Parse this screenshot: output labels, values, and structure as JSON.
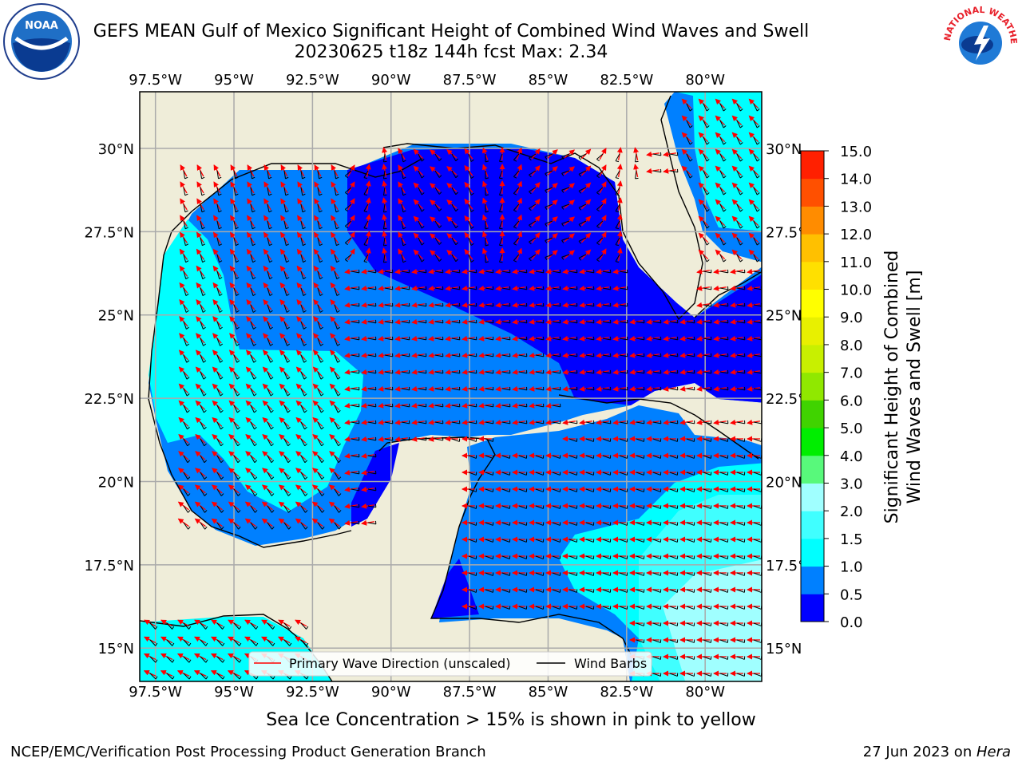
{
  "title": {
    "line1": "GEFS MEAN Gulf of Mexico Significant Height of Combined Wind Waves and Swell",
    "line2": "20230625 t18z 144h fcst   Max: 2.34"
  },
  "logos": {
    "left": "NOAA",
    "right": "NATIONAL WEATHER SERVICE"
  },
  "map": {
    "lon_labels": [
      "97.5°W",
      "95°W",
      "92.5°W",
      "90°W",
      "87.5°W",
      "85°W",
      "82.5°W",
      "80°W"
    ],
    "lat_labels": [
      "30°N",
      "27.5°N",
      "25°N",
      "22.5°N",
      "20°N",
      "17.5°N",
      "15°N"
    ],
    "lon_values": [
      -97.5,
      -95,
      -92.5,
      -90,
      -87.5,
      -85,
      -82.5,
      -80
    ],
    "lat_values": [
      30,
      27.5,
      25,
      22.5,
      20,
      17.5,
      15
    ],
    "lon_range": [
      -98,
      -78.2
    ],
    "lat_range": [
      14,
      31.7
    ],
    "grid": true,
    "colors": {
      "land": "#efedd9",
      "coast": "#000000",
      "arrow": "#ff0000",
      "barb": "#000000"
    }
  },
  "legend": {
    "wave_label": "Primary Wave Direction (unscaled)",
    "barb_label": "Wind Barbs",
    "placement": "lower-center"
  },
  "colorbar": {
    "label_line1": "Significant Height of Combined",
    "label_line2": "Wind Waves and Swell [m]",
    "ticks": [
      "0.0",
      "0.5",
      "1.0",
      "1.5",
      "2.0",
      "3.0",
      "4.0",
      "5.0",
      "6.0",
      "7.0",
      "8.0",
      "9.0",
      "10.0",
      "11.0",
      "12.0",
      "13.0",
      "14.0",
      "15.0"
    ],
    "colors": [
      "#0000ff",
      "#0080ff",
      "#00ffff",
      "#40ffff",
      "#a0ffff",
      "#58f97b",
      "#00ee00",
      "#40d300",
      "#90e800",
      "#c8f000",
      "#e8f000",
      "#ffff00",
      "#ffe000",
      "#ffc000",
      "#ff8c00",
      "#ff5000",
      "#ff2000"
    ]
  },
  "subnote": "Sea Ice Concentration > 15% is shown in pink to yellow",
  "footer": {
    "left": "NCEP/EMC/Verification Post Processing Product Generation Branch",
    "right_prefix": "27 Jun 2023 on ",
    "right_host": "Hera"
  }
}
